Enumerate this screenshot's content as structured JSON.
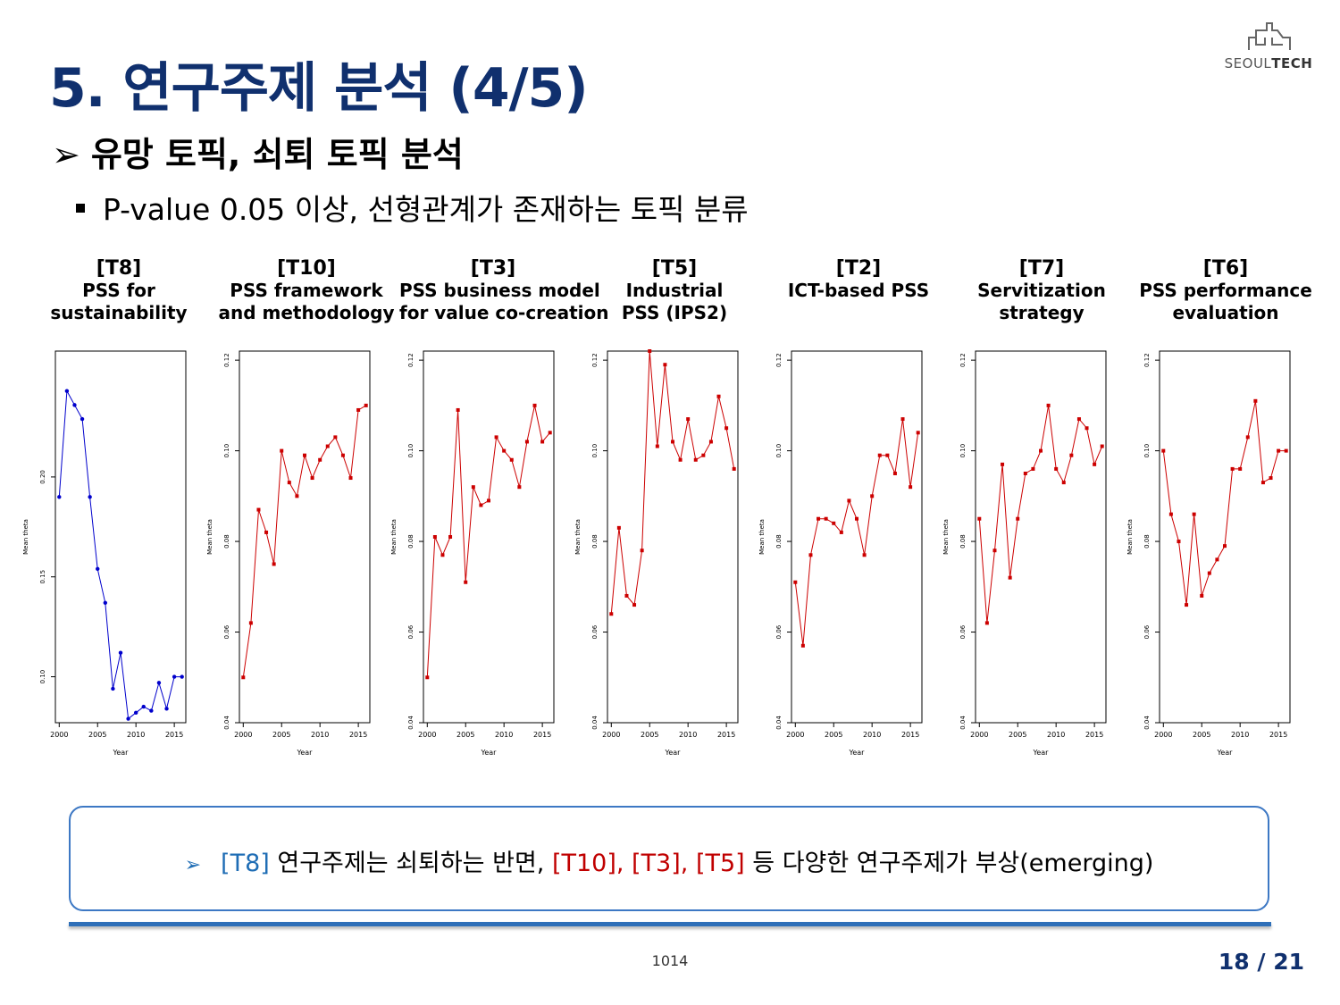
{
  "slide": {
    "title": "5. 연구주제 분석 (4/5)",
    "logo_text_light": "SEOUL",
    "logo_text_bold": "TECH",
    "subtitle_arrow": "➢",
    "subtitle": "유망 토픽, 쇠퇴 토픽 분석",
    "bullet": "P-value 0.05 이상, 선형관계가 존재하는 토픽 분류",
    "footer_code": "1014",
    "page_number": "18 / 21"
  },
  "note": {
    "arrow": "➢",
    "part1": "[T8]",
    "part2": " 연구주제는 쇠퇴하는 반면, ",
    "part3": "[T10], [T3], [T5]",
    "part4": " 등 다양한 연구주제가 부상(emerging)",
    "colors": {
      "blue": "#1f6db5",
      "red": "#c00000"
    }
  },
  "chart_data": [
    {
      "type": "line",
      "code": "[T8]",
      "title_lines": [
        "PSS for",
        "sustainability"
      ],
      "xlabel": "Year",
      "ylabel": "Mean theta",
      "color": "#0000cc",
      "xlim": [
        1999.5,
        2016.5
      ],
      "ylim": [
        0.077,
        0.263
      ],
      "xticks": [
        2000,
        2005,
        2010,
        2015
      ],
      "yticks": [
        0.1,
        0.15,
        0.2
      ],
      "ytick_labels": [
        "0.10",
        "0.15",
        "0.20"
      ],
      "x": [
        2000,
        2001,
        2002,
        2003,
        2004,
        2005,
        2006,
        2007,
        2008,
        2009,
        2010,
        2011,
        2012,
        2013,
        2014,
        2015,
        2016
      ],
      "y": [
        0.19,
        0.243,
        0.236,
        0.229,
        0.19,
        0.154,
        0.137,
        0.094,
        0.112,
        0.079,
        0.082,
        0.085,
        0.083,
        0.097,
        0.084,
        0.1,
        0.1
      ]
    },
    {
      "type": "line",
      "code": "[T10]",
      "title_lines": [
        "PSS framework",
        "and methodology"
      ],
      "xlabel": "Year",
      "ylabel": "Mean theta",
      "color": "#cc0000",
      "xlim": [
        1999.5,
        2016.5
      ],
      "ylim": [
        0.04,
        0.122
      ],
      "xticks": [
        2000,
        2005,
        2010,
        2015
      ],
      "yticks": [
        0.04,
        0.06,
        0.08,
        0.1,
        0.12
      ],
      "ytick_labels": [
        "0.04",
        "0.06",
        "0.08",
        "0.10",
        "0.12"
      ],
      "x": [
        2000,
        2001,
        2002,
        2003,
        2004,
        2005,
        2006,
        2007,
        2008,
        2009,
        2010,
        2011,
        2012,
        2013,
        2014,
        2015,
        2016
      ],
      "y": [
        0.05,
        0.062,
        0.087,
        0.082,
        0.075,
        0.1,
        0.093,
        0.09,
        0.099,
        0.094,
        0.098,
        0.101,
        0.103,
        0.099,
        0.094,
        0.109,
        0.11
      ]
    },
    {
      "type": "line",
      "code": "[T3]",
      "title_lines": [
        "PSS business model",
        "for value co-creation"
      ],
      "xlabel": "Year",
      "ylabel": "Mean theta",
      "color": "#cc0000",
      "xlim": [
        1999.5,
        2016.5
      ],
      "ylim": [
        0.04,
        0.122
      ],
      "xticks": [
        2000,
        2005,
        2010,
        2015
      ],
      "yticks": [
        0.04,
        0.06,
        0.08,
        0.1,
        0.12
      ],
      "ytick_labels": [
        "0.04",
        "0.06",
        "0.08",
        "0.10",
        "0.12"
      ],
      "x": [
        2000,
        2001,
        2002,
        2003,
        2004,
        2005,
        2006,
        2007,
        2008,
        2009,
        2010,
        2011,
        2012,
        2013,
        2014,
        2015,
        2016
      ],
      "y": [
        0.05,
        0.081,
        0.077,
        0.081,
        0.109,
        0.071,
        0.092,
        0.088,
        0.089,
        0.103,
        0.1,
        0.098,
        0.092,
        0.102,
        0.11,
        0.102,
        0.104
      ]
    },
    {
      "type": "line",
      "code": "[T5]",
      "title_lines": [
        "Industrial",
        "PSS (IPS2)"
      ],
      "xlabel": "Year",
      "ylabel": "Mean theta",
      "color": "#cc0000",
      "xlim": [
        1999.5,
        2016.5
      ],
      "ylim": [
        0.04,
        0.122
      ],
      "xticks": [
        2000,
        2005,
        2010,
        2015
      ],
      "yticks": [
        0.04,
        0.06,
        0.08,
        0.1,
        0.12
      ],
      "ytick_labels": [
        "0.04",
        "0.06",
        "0.08",
        "0.10",
        "0.12"
      ],
      "x": [
        2000,
        2001,
        2002,
        2003,
        2004,
        2005,
        2006,
        2007,
        2008,
        2009,
        2010,
        2011,
        2012,
        2013,
        2014,
        2015,
        2016
      ],
      "y": [
        0.064,
        0.083,
        0.068,
        0.066,
        0.078,
        0.122,
        0.101,
        0.119,
        0.102,
        0.098,
        0.107,
        0.098,
        0.099,
        0.102,
        0.112,
        0.105,
        0.096
      ]
    },
    {
      "type": "line",
      "code": "[T2]",
      "title_lines": [
        "ICT-based PSS"
      ],
      "xlabel": "Year",
      "ylabel": "Mean theta",
      "color": "#cc0000",
      "xlim": [
        1999.5,
        2016.5
      ],
      "ylim": [
        0.04,
        0.122
      ],
      "xticks": [
        2000,
        2005,
        2010,
        2015
      ],
      "yticks": [
        0.04,
        0.06,
        0.08,
        0.1,
        0.12
      ],
      "ytick_labels": [
        "0.04",
        "0.06",
        "0.08",
        "0.10",
        "0.12"
      ],
      "x": [
        2000,
        2001,
        2002,
        2003,
        2004,
        2005,
        2006,
        2007,
        2008,
        2009,
        2010,
        2011,
        2012,
        2013,
        2014,
        2015,
        2016
      ],
      "y": [
        0.071,
        0.057,
        0.077,
        0.085,
        0.085,
        0.084,
        0.082,
        0.089,
        0.085,
        0.077,
        0.09,
        0.099,
        0.099,
        0.095,
        0.107,
        0.092,
        0.104
      ]
    },
    {
      "type": "line",
      "code": "[T7]",
      "title_lines": [
        "Servitization",
        "strategy"
      ],
      "xlabel": "Year",
      "ylabel": "Mean theta",
      "color": "#cc0000",
      "xlim": [
        1999.5,
        2016.5
      ],
      "ylim": [
        0.04,
        0.122
      ],
      "xticks": [
        2000,
        2005,
        2010,
        2015
      ],
      "yticks": [
        0.04,
        0.06,
        0.08,
        0.1,
        0.12
      ],
      "ytick_labels": [
        "0.04",
        "0.06",
        "0.08",
        "0.10",
        "0.12"
      ],
      "x": [
        2000,
        2001,
        2002,
        2003,
        2004,
        2005,
        2006,
        2007,
        2008,
        2009,
        2010,
        2011,
        2012,
        2013,
        2014,
        2015,
        2016
      ],
      "y": [
        0.085,
        0.062,
        0.078,
        0.097,
        0.072,
        0.085,
        0.095,
        0.096,
        0.1,
        0.11,
        0.096,
        0.093,
        0.099,
        0.107,
        0.105,
        0.097,
        0.101
      ]
    },
    {
      "type": "line",
      "code": "[T6]",
      "title_lines": [
        "PSS performance",
        "evaluation"
      ],
      "xlabel": "Year",
      "ylabel": "Mean theta",
      "color": "#cc0000",
      "xlim": [
        1999.5,
        2016.5
      ],
      "ylim": [
        0.04,
        0.122
      ],
      "xticks": [
        2000,
        2005,
        2010,
        2015
      ],
      "yticks": [
        0.04,
        0.06,
        0.08,
        0.1,
        0.12
      ],
      "ytick_labels": [
        "0.04",
        "0.06",
        "0.08",
        "0.10",
        "0.12"
      ],
      "x": [
        2000,
        2001,
        2002,
        2003,
        2004,
        2005,
        2006,
        2007,
        2008,
        2009,
        2010,
        2011,
        2012,
        2013,
        2014,
        2015,
        2016
      ],
      "y": [
        0.1,
        0.086,
        0.08,
        0.066,
        0.086,
        0.068,
        0.073,
        0.076,
        0.079,
        0.096,
        0.096,
        0.103,
        0.111,
        0.093,
        0.094,
        0.1,
        0.1
      ]
    }
  ]
}
